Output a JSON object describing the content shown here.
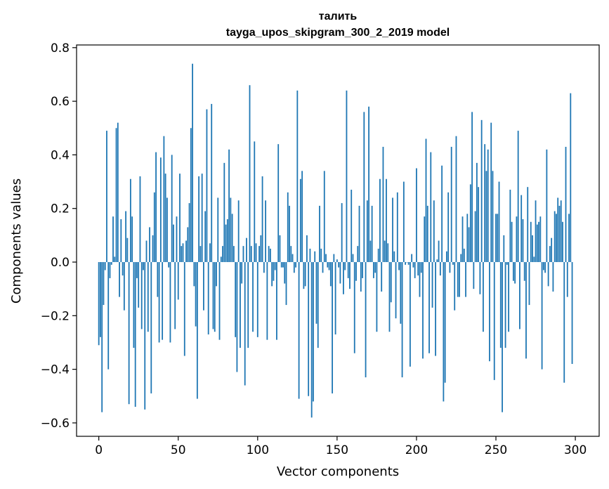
{
  "chart_data": {
    "type": "bar",
    "title": "талить",
    "subtitle": "tayga_upos_skipgram_300_2_2019 model",
    "xlabel": "Vector components",
    "ylabel": "Components values",
    "xlim": [
      -14,
      315
    ],
    "ylim": [
      -0.65,
      0.81
    ],
    "xticks": [
      0,
      50,
      100,
      150,
      200,
      250,
      300
    ],
    "yticks": [
      -0.6,
      -0.4,
      -0.2,
      0.0,
      0.2,
      0.4,
      0.6,
      0.8
    ],
    "ytick_labels": [
      "−0.6",
      "−0.4",
      "−0.2",
      "0.0",
      "0.2",
      "0.4",
      "0.6",
      "0.8"
    ],
    "color": "#1f77b4",
    "values": [
      -0.31,
      -0.28,
      -0.56,
      -0.16,
      -0.03,
      0.49,
      -0.4,
      -0.06,
      -0.01,
      0.17,
      0.02,
      0.5,
      0.52,
      -0.13,
      0.16,
      -0.05,
      -0.18,
      0.19,
      0.09,
      -0.53,
      0.31,
      0.17,
      -0.32,
      -0.54,
      -0.06,
      -0.17,
      0.32,
      -0.25,
      -0.03,
      -0.55,
      0.08,
      -0.26,
      0.13,
      -0.49,
      0.1,
      0.26,
      0.41,
      -0.13,
      -0.3,
      0.39,
      -0.29,
      0.47,
      0.33,
      0.24,
      -0.02,
      -0.3,
      0.4,
      0.14,
      -0.25,
      0.17,
      -0.14,
      0.33,
      0.06,
      0.07,
      -0.35,
      0.08,
      0.13,
      0.22,
      0.5,
      0.74,
      -0.09,
      -0.24,
      -0.51,
      0.32,
      0.06,
      0.33,
      -0.18,
      0.19,
      0.57,
      -0.27,
      0.07,
      0.59,
      -0.25,
      -0.26,
      -0.09,
      0.24,
      -0.29,
      0.02,
      0.06,
      0.37,
      0.14,
      0.16,
      0.42,
      0.24,
      0.18,
      0.06,
      -0.28,
      -0.41,
      0.23,
      -0.32,
      -0.08,
      0.06,
      -0.46,
      0.09,
      -0.32,
      0.66,
      0.06,
      -0.26,
      0.45,
      0.07,
      -0.28,
      0.06,
      0.1,
      0.32,
      -0.04,
      0.23,
      -0.29,
      0.06,
      0.05,
      -0.09,
      -0.07,
      -0.03,
      -0.29,
      0.44,
      0.1,
      -0.02,
      -0.02,
      -0.08,
      -0.16,
      0.26,
      0.21,
      0.06,
      0.03,
      -0.04,
      -0.02,
      0.64,
      -0.51,
      0.31,
      0.34,
      -0.1,
      -0.09,
      0.1,
      -0.5,
      0.05,
      -0.58,
      -0.52,
      0.04,
      -0.23,
      -0.32,
      0.21,
      0.05,
      -0.04,
      0.34,
      0.03,
      -0.02,
      -0.03,
      -0.09,
      -0.49,
      0.03,
      -0.27,
      0.01,
      -0.02,
      -0.08,
      0.22,
      -0.12,
      -0.03,
      0.64,
      -0.06,
      -0.1,
      0.27,
      0.03,
      -0.34,
      -0.07,
      0.06,
      0.21,
      -0.11,
      -0.06,
      0.56,
      -0.43,
      0.23,
      0.58,
      0.08,
      0.21,
      -0.06,
      -0.04,
      -0.26,
      0.05,
      0.31,
      -0.11,
      0.43,
      0.08,
      0.31,
      0.07,
      -0.26,
      -0.15,
      0.24,
      0.04,
      -0.21,
      0.26,
      -0.03,
      -0.23,
      -0.43,
      0.3,
      -0.01,
      0.0,
      -0.01,
      -0.39,
      0.03,
      -0.02,
      -0.06,
      0.35,
      -0.05,
      -0.13,
      -0.04,
      -0.36,
      0.17,
      0.46,
      0.21,
      -0.34,
      0.41,
      -0.17,
      0.23,
      -0.35,
      0.01,
      0.08,
      -0.05,
      0.36,
      -0.52,
      -0.45,
      0.04,
      0.26,
      -0.04,
      0.43,
      -0.01,
      -0.18,
      0.47,
      -0.13,
      -0.13,
      0.03,
      0.17,
      0.05,
      -0.13,
      0.18,
      0.13,
      0.29,
      0.56,
      -0.1,
      0.19,
      0.37,
      0.28,
      -0.12,
      0.53,
      -0.26,
      0.44,
      0.34,
      0.42,
      -0.37,
      0.52,
      0.34,
      -0.44,
      0.18,
      0.18,
      0.3,
      -0.32,
      -0.56,
      0.1,
      -0.32,
      -0.01,
      -0.26,
      0.27,
      0.15,
      -0.07,
      -0.08,
      0.17,
      0.49,
      -0.25,
      0.25,
      0.16,
      -0.07,
      -0.36,
      0.28,
      -0.16,
      0.15,
      0.1,
      0.02,
      0.23,
      0.14,
      0.15,
      0.17,
      -0.4,
      -0.03,
      -0.04,
      0.42,
      -0.09,
      0.06,
      0.09,
      -0.11,
      0.19,
      0.18,
      0.24,
      0.21,
      0.23,
      0.15,
      -0.45,
      0.43,
      -0.13,
      0.18,
      0.63,
      -0.38
    ]
  }
}
